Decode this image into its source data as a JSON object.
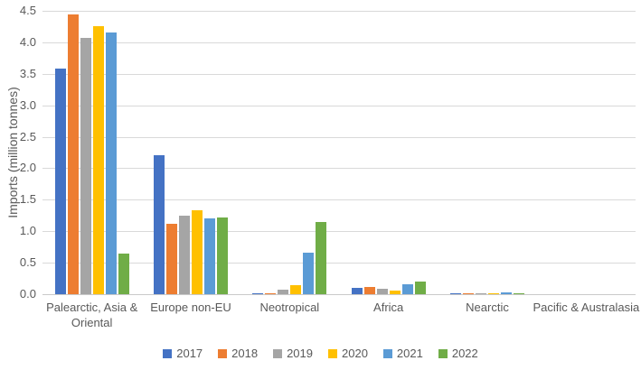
{
  "style": {
    "background": "#FFFFFF",
    "text_color": "#595959",
    "gridline_color": "#D9D9D9",
    "axis_line_color": "#C9C9C9"
  },
  "chart_data": {
    "type": "bar",
    "title": "",
    "xlabel": "",
    "ylabel": "Imports (million tonnes)",
    "ylim": [
      0,
      4.5
    ],
    "ytick_step": 0.5,
    "grid": true,
    "legend_position": "bottom",
    "yticks": [
      "0.0",
      "0.5",
      "1.0",
      "1.5",
      "2.0",
      "2.5",
      "3.0",
      "3.5",
      "4.0",
      "4.5"
    ],
    "categories": [
      "Palearctic, Asia & Oriental",
      "Europe non-EU",
      "Neotropical",
      "Africa",
      "Nearctic",
      "Pacific & Australasia"
    ],
    "series": [
      {
        "name": "2017",
        "color": "#4472C4",
        "values": [
          3.58,
          2.21,
          0.01,
          0.1,
          0.02,
          0.0
        ]
      },
      {
        "name": "2018",
        "color": "#ED7D31",
        "values": [
          4.45,
          1.12,
          0.01,
          0.12,
          0.02,
          0.0
        ]
      },
      {
        "name": "2019",
        "color": "#A5A5A5",
        "values": [
          4.07,
          1.25,
          0.07,
          0.09,
          0.02,
          0.0
        ]
      },
      {
        "name": "2020",
        "color": "#FFC000",
        "values": [
          4.26,
          1.33,
          0.15,
          0.06,
          0.02,
          0.0
        ]
      },
      {
        "name": "2021",
        "color": "#5B9BD5",
        "values": [
          4.16,
          1.21,
          0.66,
          0.16,
          0.03,
          0.0
        ]
      },
      {
        "name": "2022",
        "color": "#70AD47",
        "values": [
          0.65,
          1.22,
          1.14,
          0.2,
          0.01,
          0.0
        ]
      }
    ]
  }
}
